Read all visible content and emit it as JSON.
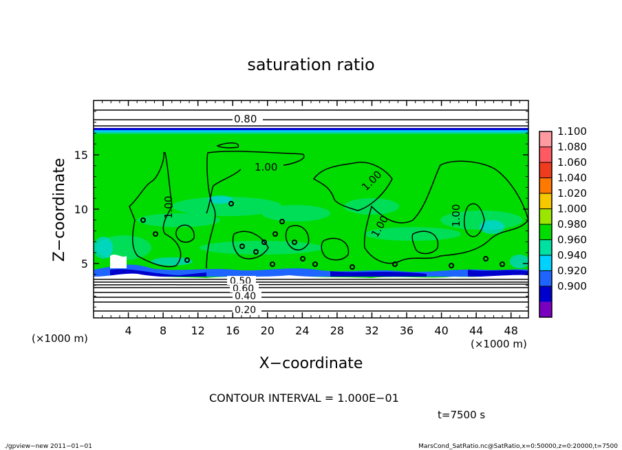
{
  "chart_data": {
    "type": "heatmap",
    "title": "saturation ratio",
    "xlabel": "X−coordinate",
    "ylabel": "Z−coordinate",
    "x_unit": "(×1000 m)",
    "y_unit": "(×1000 m)",
    "xlim": [
      0,
      50
    ],
    "ylim": [
      0,
      20
    ],
    "x_ticks": [
      4,
      8,
      12,
      16,
      20,
      24,
      28,
      32,
      36,
      40,
      44,
      48
    ],
    "y_ticks": [
      5,
      10,
      15
    ],
    "grid": false,
    "colorbar": {
      "levels": [
        "1.100",
        "1.080",
        "1.060",
        "1.040",
        "1.020",
        "1.000",
        "0.980",
        "0.960",
        "0.940",
        "0.920",
        "0.900"
      ],
      "colors": [
        "#ff9aa0",
        "#ff5a64",
        "#f03c1e",
        "#ff7800",
        "#f5c800",
        "#9be600",
        "#00dc00",
        "#00e0a0",
        "#00d2ff",
        "#1e64ff",
        "#0000cc",
        "#7a00c0"
      ]
    },
    "contour_labels": [
      {
        "text": "0.80",
        "x": 17.6,
        "z": 18.4
      },
      {
        "text": "1.00",
        "x": 19.8,
        "z": 14.8
      },
      {
        "text": "1.00",
        "x": 7.7,
        "z": 10.2,
        "rotate": -90
      },
      {
        "text": "1.00",
        "x": 31.6,
        "z": 13.0,
        "rotate": -45
      },
      {
        "text": "1.00",
        "x": 32.2,
        "z": 8.4,
        "rotate": -60
      },
      {
        "text": "1.00",
        "x": 41.5,
        "z": 9.4,
        "rotate": -90
      },
      {
        "text": "0.50",
        "x": 16.4,
        "z": 3.1
      },
      {
        "text": "0.60",
        "x": 17.0,
        "z": 2.5
      },
      {
        "text": "0.40",
        "x": 17.4,
        "z": 2.0
      },
      {
        "text": "0.20",
        "x": 17.4,
        "z": 0.6
      }
    ]
  },
  "contour_interval": "CONTOUR INTERVAL = 1.000E−01",
  "time_label": "t=7500 s",
  "footer_left": "./gpview−new  2011−01−01",
  "footer_right": "MarsCond_SatRatio.nc@SatRatio,x=0:50000,z=0:20000,t=7500"
}
